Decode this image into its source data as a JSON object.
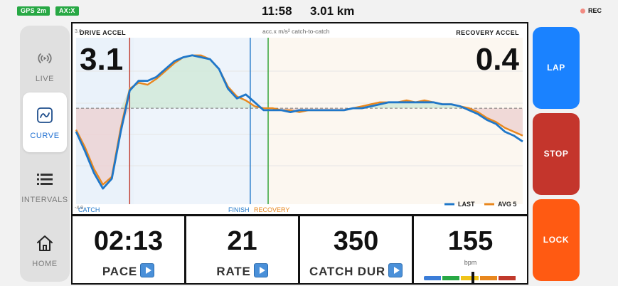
{
  "status": {
    "gps_badge": "GPS 2m",
    "axis_badge": "AX:X",
    "time": "11:58",
    "distance": "3.01 km",
    "rec_label": "REC",
    "badge_color": "#27a844"
  },
  "sidebar": {
    "items": [
      {
        "label": "LIVE",
        "icon": "broadcast-icon",
        "active": false
      },
      {
        "label": "CURVE",
        "icon": "curve-icon",
        "active": true
      },
      {
        "label": "INTERVALS",
        "icon": "list-icon",
        "active": false
      },
      {
        "label": "HOME",
        "icon": "home-icon",
        "active": false
      }
    ]
  },
  "chart": {
    "left_title": "DRIVE ACCEL",
    "center_subtitle": "acc.x m/s² catch-to-catch",
    "right_title": "RECOVERY ACCEL",
    "drive_value": "3.1",
    "recovery_value": "0.4",
    "y_top_tick": "3.6",
    "y_bottom_tick": "-4.9",
    "catch_label": "CATCH",
    "finish_label": "FINISH",
    "recovery_label": "RECOVERY",
    "legend_last": "LAST",
    "legend_avg": "AVG 5",
    "colors": {
      "last": "#1f77c9",
      "avg": "#e8871e",
      "catch": "#c0392b",
      "finish": "#1f77c9",
      "recovery": "#2ca02c"
    }
  },
  "chart_data": {
    "type": "line",
    "ylim": [
      -4.9,
      3.6
    ],
    "x": [
      0,
      2,
      4,
      6,
      8,
      10,
      12,
      14,
      16,
      18,
      20,
      22,
      24,
      26,
      28,
      30,
      32,
      34,
      36,
      38,
      40,
      42,
      44,
      46,
      48,
      50,
      52,
      54,
      56,
      58,
      60,
      62,
      64,
      66,
      68,
      70,
      72,
      74,
      76,
      78,
      80,
      82,
      84,
      86,
      88,
      90,
      92,
      94,
      96,
      98,
      100
    ],
    "markers": {
      "catch": 12,
      "finish": 39,
      "recovery": 43
    },
    "series": [
      {
        "name": "LAST",
        "values": [
          -1.2,
          -2.2,
          -3.3,
          -4.1,
          -3.6,
          -1.2,
          0.9,
          1.4,
          1.4,
          1.6,
          2.0,
          2.4,
          2.6,
          2.7,
          2.6,
          2.5,
          2.0,
          1.0,
          0.5,
          0.7,
          0.3,
          -0.1,
          -0.1,
          -0.1,
          -0.2,
          -0.1,
          -0.1,
          -0.1,
          -0.1,
          -0.1,
          -0.1,
          0.0,
          0.0,
          0.1,
          0.2,
          0.3,
          0.3,
          0.3,
          0.3,
          0.3,
          0.3,
          0.2,
          0.2,
          0.1,
          -0.1,
          -0.3,
          -0.6,
          -0.8,
          -1.2,
          -1.4,
          -1.7
        ]
      },
      {
        "name": "AVG 5",
        "values": [
          -1.1,
          -2.0,
          -3.1,
          -3.9,
          -3.5,
          -1.0,
          1.0,
          1.3,
          1.2,
          1.5,
          1.9,
          2.3,
          2.6,
          2.7,
          2.7,
          2.5,
          2.0,
          1.1,
          0.6,
          0.4,
          0.1,
          0.0,
          0.0,
          -0.1,
          -0.1,
          -0.2,
          -0.1,
          -0.1,
          -0.1,
          -0.1,
          -0.1,
          0.0,
          0.1,
          0.2,
          0.3,
          0.3,
          0.3,
          0.4,
          0.3,
          0.4,
          0.3,
          0.2,
          0.2,
          0.1,
          0.0,
          -0.2,
          -0.5,
          -0.7,
          -1.0,
          -1.2,
          -1.4
        ]
      }
    ]
  },
  "metrics": [
    {
      "value": "02:13",
      "label": "PACE"
    },
    {
      "value": "21",
      "label": "RATE"
    },
    {
      "value": "350",
      "label": "CATCH DUR"
    },
    {
      "value": "155",
      "label": "",
      "unit": "bpm",
      "zone_level": 0.53
    }
  ],
  "hr_zone_colors": [
    "#3b7dd8",
    "#27a844",
    "#f0c419",
    "#e8871e",
    "#c0392b"
  ],
  "actions": [
    {
      "label": "LAP",
      "color": "#1a82ff"
    },
    {
      "label": "STOP",
      "color": "#c4352c"
    },
    {
      "label": "LOCK",
      "color": "#ff5a12"
    }
  ]
}
